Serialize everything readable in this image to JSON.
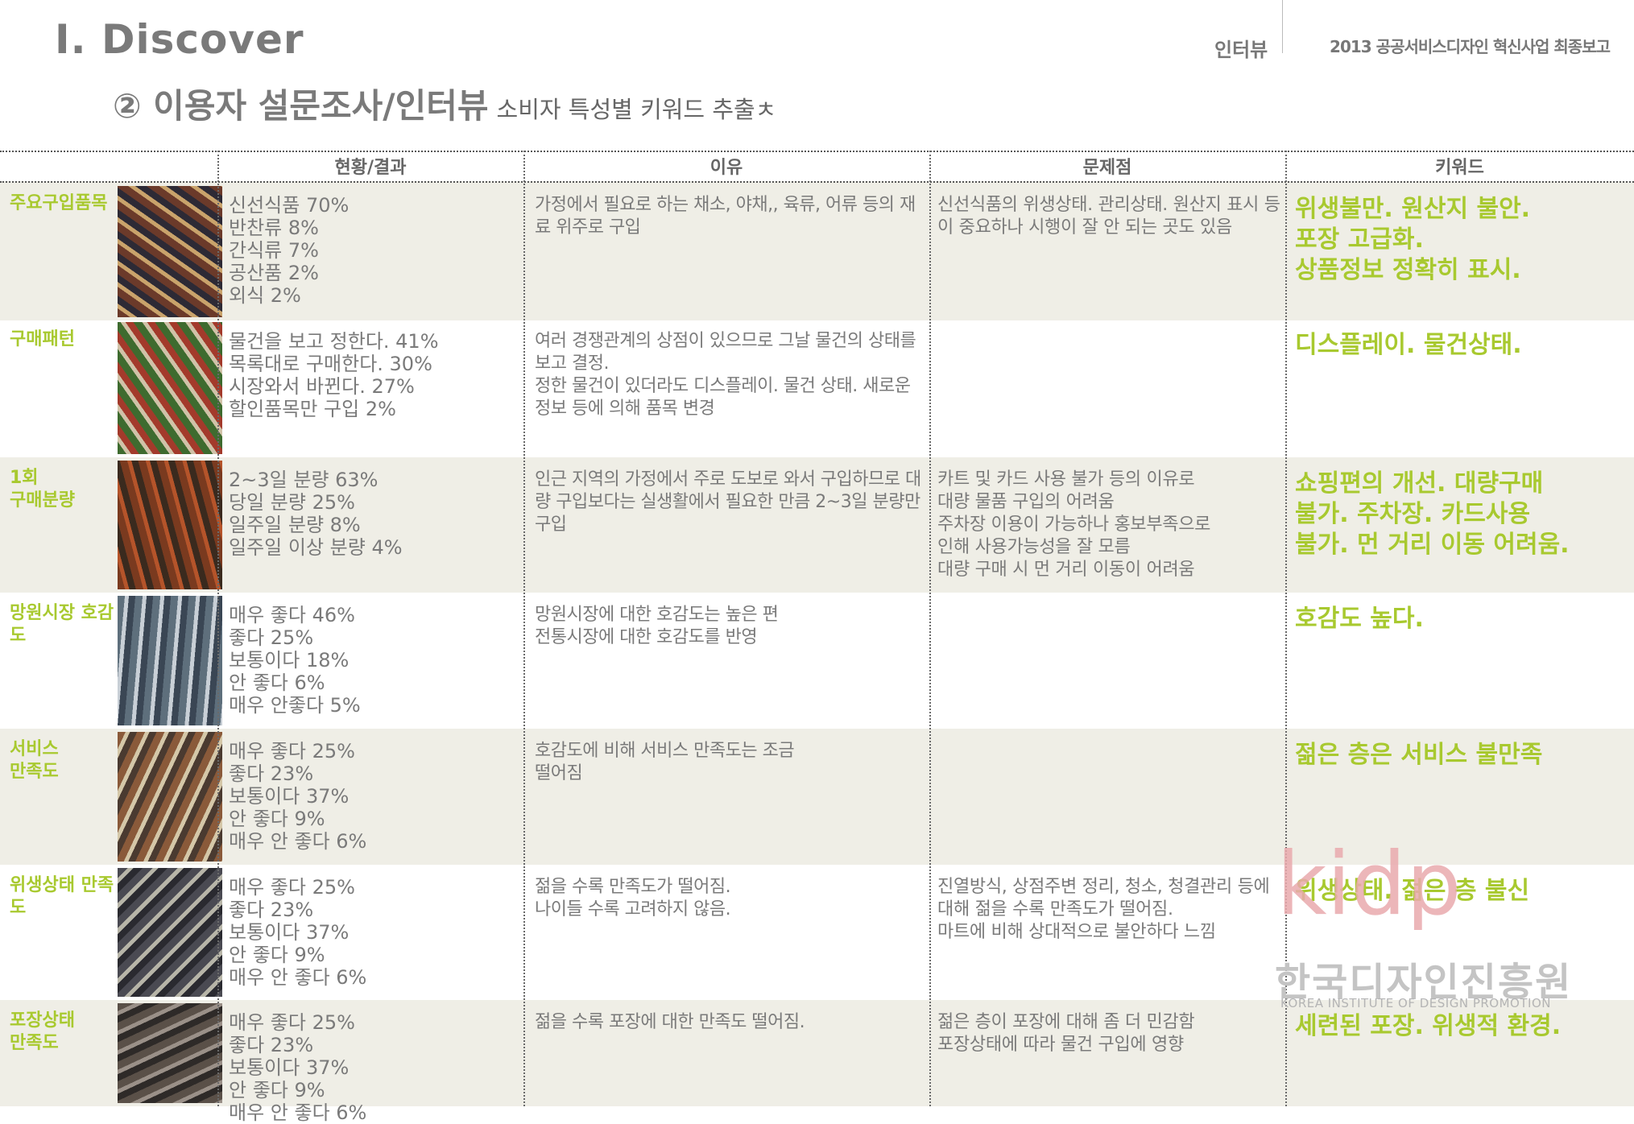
{
  "header": {
    "title": "Ⅰ. Discover",
    "subtitle": "② 이용자 설문조사/인터뷰",
    "subtitle_small": "소비자 특성별 키워드 추출ㅊ",
    "section": "인터뷰",
    "report": "2013 공공서비스디자인 혁신사업 최종보고"
  },
  "table": {
    "headers": [
      "현황/결과",
      "이유",
      "문제점",
      "키워드"
    ],
    "rows": [
      {
        "category": "주요구입품목",
        "status": "신선식품  70%\n반찬류  8%\n간식류  7%\n공산품  2%\n외식  2%",
        "reason": "가정에서 필요로 하는 채소, 야채,, 육류, 어류 등의 재료 위주로 구입",
        "problem": "신선식품의 위생상태. 관리상태. 원산지 표시 등이 중요하나 시행이 잘 안 되는 곳도 있음",
        "keyword": "위생불만. 원산지 불안.\n포장 고급화.\n상품정보 정확히 표시."
      },
      {
        "category": "구매패턴",
        "status": "물건을 보고 정한다. 41%\n목록대로 구매한다. 30%\n시장와서 바뀐다. 27%\n할인품목만 구입 2%",
        "reason": "여러 경쟁관계의 상점이 있으므로 그날 물건의 상태를 보고 결정.\n정한 물건이 있더라도 디스플레이. 물건 상태. 새로운 정보 등에 의해 품목 변경",
        "problem": "",
        "keyword": "디스플레이. 물건상태."
      },
      {
        "category": "1회\n구매분량",
        "status": "2~3일 분량 63%\n당일 분량 25%\n일주일 분량 8%\n일주일 이상 분량 4%",
        "reason": "인근 지역의 가정에서 주로 도보로 와서 구입하므로 대량 구입보다는 실생활에서 필요한 만큼 2~3일 분량만 구입",
        "problem": "카트 및 카드 사용 불가 등의 이유로\n대량 물품 구입의 어려움\n주차장 이용이 가능하나 홍보부족으로\n인해 사용가능성을 잘 모름\n대량 구매 시 먼 거리 이동이 어려움",
        "keyword": "쇼핑편의 개선. 대량구매\n불가. 주차장. 카드사용\n불가. 먼 거리 이동 어려움."
      },
      {
        "category": "망원시장 호감도",
        "status": "매우 좋다 46%\n좋다 25%\n보통이다  18%\n안 좋다  6%\n매우 안좋다  5%",
        "reason": " 망원시장에 대한 호감도는 높은 편\n 전통시장에 대한 호감도를 반영",
        "problem": "",
        "keyword": "호감도 높다."
      },
      {
        "category": "서비스\n만족도",
        "status": "매우 좋다 25%\n좋다 23%\n보통이다 37%\n안 좋다  9%\n매우 안 좋다  6%",
        "reason": "호감도에 비해 서비스 만족도는 조금\n떨어짐",
        "problem": "",
        "keyword": "젊은 층은 서비스 불만족"
      },
      {
        "category": "위생상태 만족도",
        "status": "매우 좋다 25%\n좋다 23%\n보통이다 37%\n안 좋다  9%\n매우 안 좋다  6%",
        "reason": "젊을 수록 만족도가 떨어짐.\n나이들 수록 고려하지 않음.",
        "problem": "진열방식, 상점주변 정리, 청소, 청결관리 등에 대해 젊을 수록 만족도가 떨어짐.\n마트에 비해 상대적으로 불안하다 느낌",
        "keyword": "위생상태. 젊은 층 불신"
      },
      {
        "category": "포장상태\n만족도",
        "status": "매우 좋다 25%\n좋다 23%\n보통이다 37%\n안 좋다  9%\n매우 안 좋다  6%",
        "reason": "젊을 수록 포장에 대한 만족도 떨어짐.",
        "problem": "젊은 층이 포장에 대해 좀 더 민감함\n포장상태에 따라 물건 구입에 영향",
        "keyword": "세련된 포장. 위생적 환경."
      }
    ]
  },
  "watermark": {
    "logo": "kidp",
    "name_ko": "한국디자인진흥원",
    "name_en": "KOREA INSTITUTE OF DESIGN PROMOTION"
  },
  "colors": {
    "accent": "#a8c92f",
    "shade": "#efeee6",
    "text": "#7a7a7a",
    "logo": "#e9a9ad"
  }
}
